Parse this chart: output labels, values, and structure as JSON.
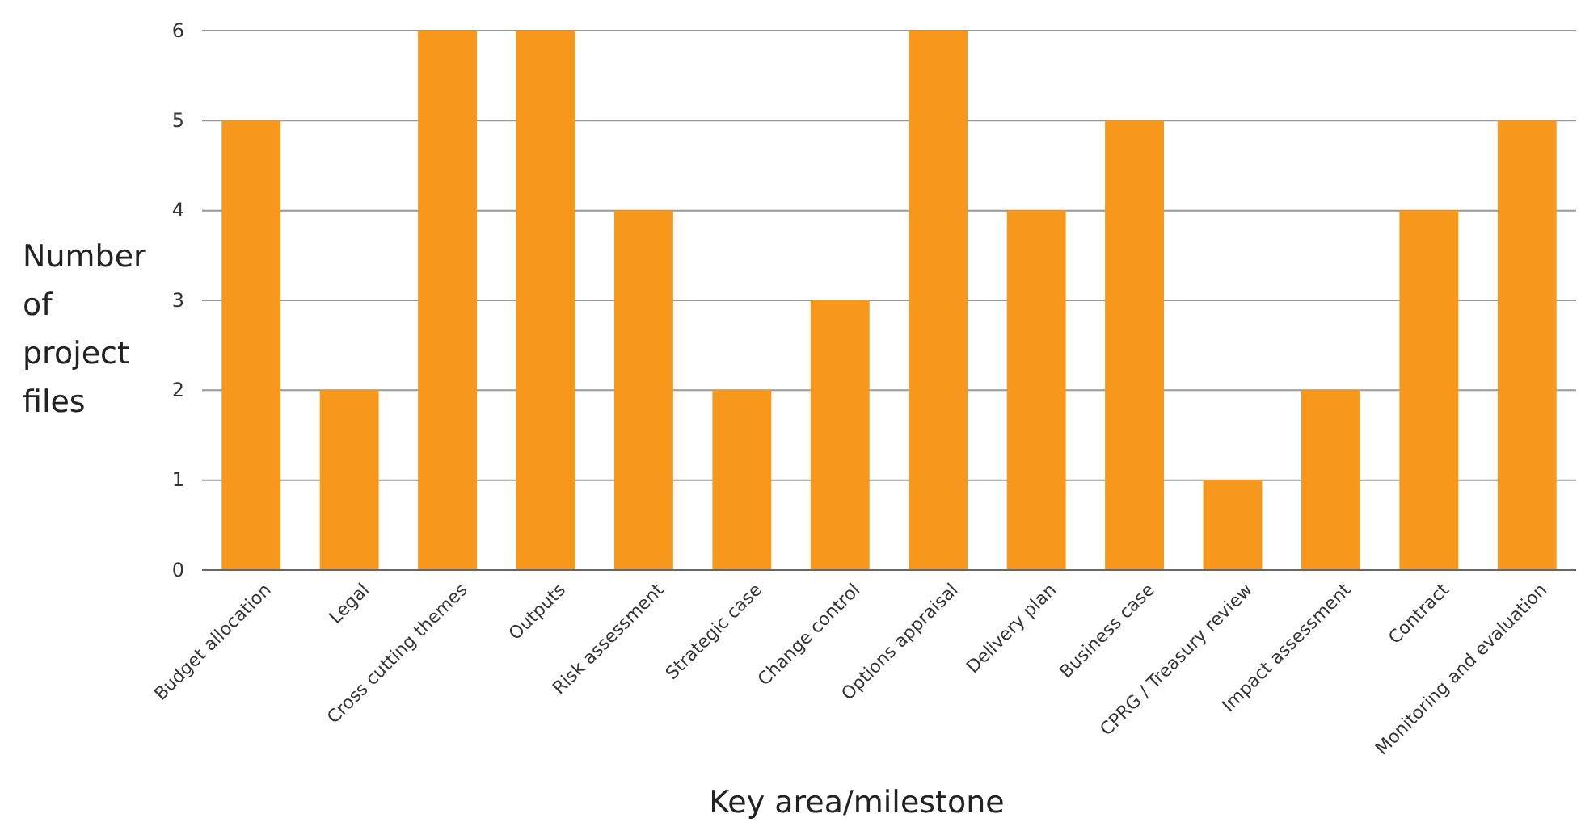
{
  "chart_data": {
    "type": "bar",
    "xlabel": "Key area/milestone",
    "ylabel": "Number of project files",
    "categories": [
      "Budget allocation",
      "Legal",
      "Cross cutting themes",
      "Outputs",
      "Risk assessment",
      "Strategic case",
      "Change control",
      "Options appraisal",
      "Delivery plan",
      "Business case",
      "CPRG / Treasury review",
      "Impact assessment",
      "Contract",
      "Monitoring and evaluation"
    ],
    "values": [
      5,
      2,
      6,
      6,
      4,
      2,
      3,
      6,
      4,
      5,
      1,
      2,
      4,
      5
    ],
    "color": "#f7981d",
    "ylim": [
      0,
      6
    ],
    "yticks": [
      0,
      1,
      2,
      3,
      4,
      5,
      6
    ],
    "grid": "y"
  }
}
